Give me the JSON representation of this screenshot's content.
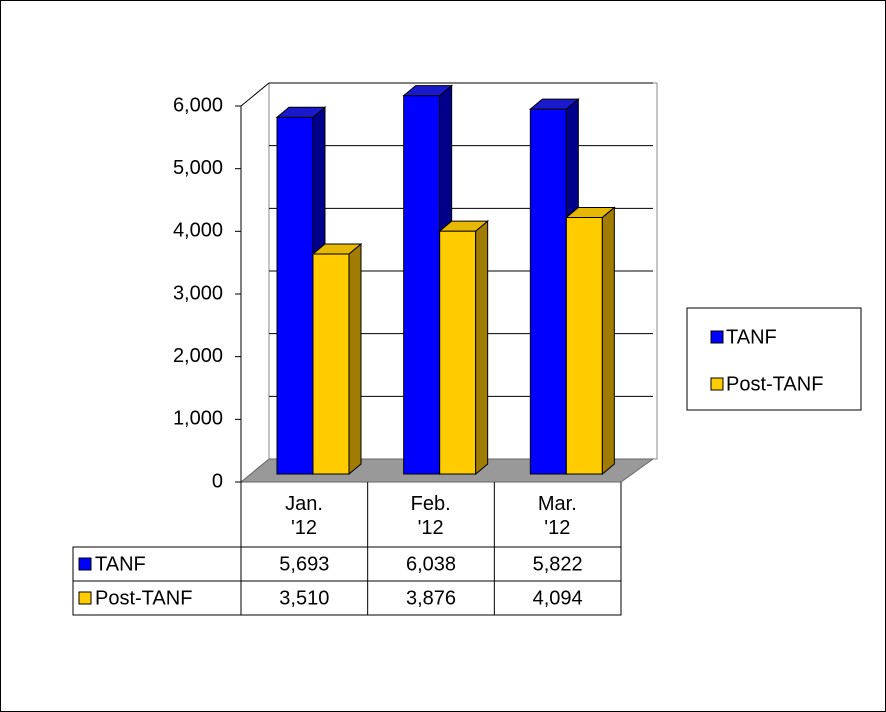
{
  "chart_data": {
    "type": "bar3d",
    "categories": [
      "Jan.\n'12",
      "Feb.\n'12",
      "Mar.\n'12"
    ],
    "series": [
      {
        "name": "TANF",
        "color": "#0000ff",
        "values": [
          5693,
          6038,
          5822
        ],
        "value_labels": [
          "5,693",
          "6,038",
          "5,822"
        ]
      },
      {
        "name": "Post-TANF",
        "color": "#ffcc00",
        "values": [
          3510,
          3876,
          4094
        ],
        "value_labels": [
          "3,510",
          "3,876",
          "4,094"
        ]
      }
    ],
    "ylim": [
      0,
      6000
    ],
    "yticks": [
      0,
      {
        "value": 1000,
        "label": "1,000"
      },
      {
        "value": 2000,
        "label": "2,000"
      },
      {
        "value": 3000,
        "label": "3,000"
      },
      {
        "value": 4000,
        "label": "4,000"
      },
      {
        "value": 5000,
        "label": "5,000"
      },
      {
        "value": 6000,
        "label": "6,000"
      }
    ],
    "grid": true,
    "legend": "right",
    "data_table": true
  }
}
